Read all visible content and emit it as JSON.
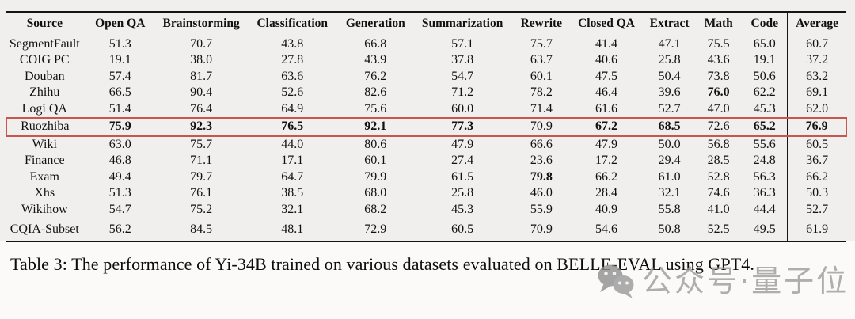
{
  "table": {
    "columns": [
      "Source",
      "Open QA",
      "Brainstorming",
      "Classification",
      "Generation",
      "Summarization",
      "Rewrite",
      "Closed QA",
      "Extract",
      "Math",
      "Code",
      "Average"
    ],
    "rows": [
      {
        "source": "SegmentFault",
        "values": [
          "51.3",
          "70.7",
          "43.8",
          "66.8",
          "57.1",
          "75.7",
          "41.4",
          "47.1",
          "75.5",
          "65.0",
          "60.7"
        ],
        "bold": [],
        "highlight": false,
        "separated": false
      },
      {
        "source": "COIG PC",
        "values": [
          "19.1",
          "38.0",
          "27.8",
          "43.9",
          "37.8",
          "63.7",
          "40.6",
          "25.8",
          "43.6",
          "19.1",
          "37.2"
        ],
        "bold": [],
        "highlight": false,
        "separated": false
      },
      {
        "source": "Douban",
        "values": [
          "57.4",
          "81.7",
          "63.6",
          "76.2",
          "54.7",
          "60.1",
          "47.5",
          "50.4",
          "73.8",
          "50.6",
          "63.2"
        ],
        "bold": [],
        "highlight": false,
        "separated": false
      },
      {
        "source": "Zhihu",
        "values": [
          "66.5",
          "90.4",
          "52.6",
          "82.6",
          "71.2",
          "78.2",
          "46.4",
          "39.6",
          "76.0",
          "62.2",
          "69.1"
        ],
        "bold": [
          8
        ],
        "highlight": false,
        "separated": false
      },
      {
        "source": "Logi QA",
        "values": [
          "51.4",
          "76.4",
          "64.9",
          "75.6",
          "60.0",
          "71.4",
          "61.6",
          "52.7",
          "47.0",
          "45.3",
          "62.0"
        ],
        "bold": [],
        "highlight": false,
        "separated": false
      },
      {
        "source": "Ruozhiba",
        "values": [
          "75.9",
          "92.3",
          "76.5",
          "92.1",
          "77.3",
          "70.9",
          "67.2",
          "68.5",
          "72.6",
          "65.2",
          "76.9"
        ],
        "bold": [
          0,
          1,
          2,
          3,
          4,
          6,
          7,
          9,
          10
        ],
        "highlight": true,
        "separated": false
      },
      {
        "source": "Wiki",
        "values": [
          "63.0",
          "75.7",
          "44.0",
          "80.6",
          "47.9",
          "66.6",
          "47.9",
          "50.0",
          "56.8",
          "55.6",
          "60.5"
        ],
        "bold": [],
        "highlight": false,
        "separated": false
      },
      {
        "source": "Finance",
        "values": [
          "46.8",
          "71.1",
          "17.1",
          "60.1",
          "27.4",
          "23.6",
          "17.2",
          "29.4",
          "28.5",
          "24.8",
          "36.7"
        ],
        "bold": [],
        "highlight": false,
        "separated": false
      },
      {
        "source": "Exam",
        "values": [
          "49.4",
          "79.7",
          "64.7",
          "79.9",
          "61.5",
          "79.8",
          "66.2",
          "61.0",
          "52.8",
          "56.3",
          "66.2"
        ],
        "bold": [
          5
        ],
        "highlight": false,
        "separated": false
      },
      {
        "source": "Xhs",
        "values": [
          "51.3",
          "76.1",
          "38.5",
          "68.0",
          "25.8",
          "46.0",
          "28.4",
          "32.1",
          "74.6",
          "36.3",
          "50.3"
        ],
        "bold": [],
        "highlight": false,
        "separated": false
      },
      {
        "source": "Wikihow",
        "values": [
          "54.7",
          "75.2",
          "32.1",
          "68.2",
          "45.3",
          "55.9",
          "40.9",
          "55.8",
          "41.0",
          "44.4",
          "52.7"
        ],
        "bold": [],
        "highlight": false,
        "separated": false
      },
      {
        "source": "CQIA-Subset",
        "values": [
          "56.2",
          "84.5",
          "48.1",
          "72.9",
          "60.5",
          "70.9",
          "54.6",
          "50.8",
          "52.5",
          "49.5",
          "61.9"
        ],
        "bold": [],
        "highlight": false,
        "separated": true
      }
    ]
  },
  "caption": {
    "text": "Table 3: The performance of Yi-34B trained on various datasets evaluated on BELLE-EVAL using GPT4."
  },
  "watermark": {
    "icon": "wechat-bubbles-icon",
    "text": "公众号·量子位"
  },
  "colors": {
    "highlight_box": "#c9564c",
    "rule_black": "#141414",
    "watermark_gray": "#9c9c9c",
    "page_background": "#f0efed"
  }
}
